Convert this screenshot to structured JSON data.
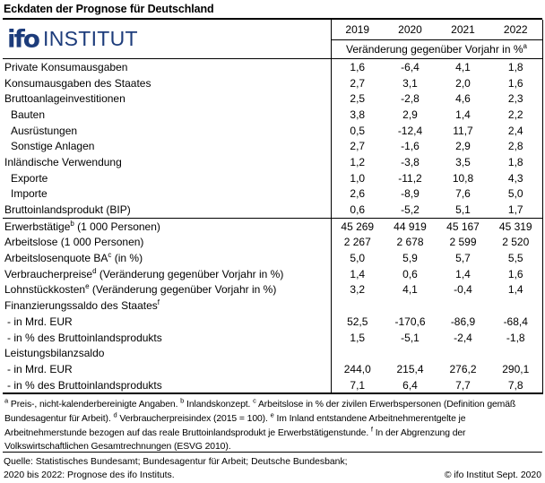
{
  "title": "Eckdaten der Prognose für Deutschland",
  "logo": {
    "mark": "ifo",
    "name": "INSTITUT"
  },
  "colors": {
    "brand_blue": "#1d3c7b",
    "text": "#000000",
    "line": "#000000"
  },
  "header": {
    "years": [
      "2019",
      "2020",
      "2021",
      "2022"
    ],
    "unit_label": "Veränderung gegenüber Vorjahr in %",
    "unit_sup": "a"
  },
  "rows": [
    {
      "pre": "Private Konsumausgaben",
      "sup": "",
      "post": "",
      "indent": 0,
      "section_start": false,
      "values": [
        "1,6",
        "-6,4",
        "4,1",
        "1,8"
      ]
    },
    {
      "pre": "Konsumausgaben des Staates",
      "sup": "",
      "post": "",
      "indent": 0,
      "section_start": false,
      "values": [
        "2,7",
        "3,1",
        "2,0",
        "1,6"
      ]
    },
    {
      "pre": "Bruttoanlageinvestitionen",
      "sup": "",
      "post": "",
      "indent": 0,
      "section_start": false,
      "values": [
        "2,5",
        "-2,8",
        "4,6",
        "2,3"
      ]
    },
    {
      "pre": "Bauten",
      "sup": "",
      "post": "",
      "indent": 1,
      "section_start": false,
      "values": [
        "3,8",
        "2,9",
        "1,4",
        "2,2"
      ]
    },
    {
      "pre": "Ausrüstungen",
      "sup": "",
      "post": "",
      "indent": 1,
      "section_start": false,
      "values": [
        "0,5",
        "-12,4",
        "11,7",
        "2,4"
      ]
    },
    {
      "pre": "Sonstige Anlagen",
      "sup": "",
      "post": "",
      "indent": 1,
      "section_start": false,
      "values": [
        "2,7",
        "-1,6",
        "2,9",
        "2,8"
      ]
    },
    {
      "pre": "Inländische Verwendung",
      "sup": "",
      "post": "",
      "indent": 0,
      "section_start": false,
      "values": [
        "1,2",
        "-3,8",
        "3,5",
        "1,8"
      ]
    },
    {
      "pre": "Exporte",
      "sup": "",
      "post": "",
      "indent": 1,
      "section_start": false,
      "values": [
        "1,0",
        "-11,2",
        "10,8",
        "4,3"
      ]
    },
    {
      "pre": "Importe",
      "sup": "",
      "post": "",
      "indent": 1,
      "section_start": false,
      "values": [
        "2,6",
        "-8,9",
        "7,6",
        "5,0"
      ]
    },
    {
      "pre": "Bruttoinlandsprodukt (BIP)",
      "sup": "",
      "post": "",
      "indent": 0,
      "section_start": false,
      "values": [
        "0,6",
        "-5,2",
        "5,1",
        "1,7"
      ]
    },
    {
      "pre": "Erwerbstätige",
      "sup": "b",
      "post": " (1 000 Personen)",
      "indent": 0,
      "section_start": true,
      "values": [
        "45 269",
        "44 919",
        "45 167",
        "45 319"
      ]
    },
    {
      "pre": "Arbeitslose (1 000 Personen)",
      "sup": "",
      "post": "",
      "indent": 0,
      "section_start": false,
      "values": [
        "2 267",
        "2 678",
        "2 599",
        "2 520"
      ]
    },
    {
      "pre": "Arbeitslosenquote BA",
      "sup": "c",
      "post": " (in %)",
      "indent": 0,
      "section_start": false,
      "values": [
        "5,0",
        "5,9",
        "5,7",
        "5,5"
      ]
    },
    {
      "pre": "Verbraucherpreise",
      "sup": "d",
      "post": " (Veränderung gegenüber Vorjahr in %)",
      "indent": 0,
      "section_start": false,
      "values": [
        "1,4",
        "0,6",
        "1,4",
        "1,6"
      ]
    },
    {
      "pre": "Lohnstückkosten",
      "sup": "e",
      "post": " (Veränderung gegenüber Vorjahr in %)",
      "indent": 0,
      "section_start": false,
      "values": [
        "3,2",
        "4,1",
        "-0,4",
        "1,4"
      ]
    },
    {
      "pre": "Finanzierungssaldo des Staates",
      "sup": "f",
      "post": "",
      "indent": 0,
      "section_start": false,
      "values": [
        "",
        "",
        "",
        ""
      ]
    },
    {
      "pre": "- in Mrd. EUR",
      "sup": "",
      "post": "",
      "indent": 2,
      "section_start": false,
      "values": [
        "52,5",
        "-170,6",
        "-86,9",
        "-68,4"
      ]
    },
    {
      "pre": "- in % des Bruttoinlandsprodukts",
      "sup": "",
      "post": "",
      "indent": 2,
      "section_start": false,
      "values": [
        "1,5",
        "-5,1",
        "-2,4",
        "-1,8"
      ]
    },
    {
      "pre": "Leistungsbilanzsaldo",
      "sup": "",
      "post": "",
      "indent": 0,
      "section_start": false,
      "values": [
        "",
        "",
        "",
        ""
      ]
    },
    {
      "pre": "- in Mrd. EUR",
      "sup": "",
      "post": "",
      "indent": 2,
      "section_start": false,
      "values": [
        "244,0",
        "215,4",
        "276,2",
        "290,1"
      ]
    },
    {
      "pre": "- in % des Bruttoinlandsprodukts",
      "sup": "",
      "post": "",
      "indent": 2,
      "section_start": false,
      "values": [
        "7,1",
        "6,4",
        "7,7",
        "7,8"
      ]
    }
  ],
  "footnotes": [
    {
      "sup": "a",
      "text": " Preis-, nicht-kalenderbereinigte Angaben. "
    },
    {
      "sup": "b",
      "text": " Inlandskonzept. "
    },
    {
      "sup": "c",
      "text": " Arbeitslose in % der zivilen Erwerbspersonen (Definition gemäß Bundesagentur für Arbeit). "
    },
    {
      "sup": "d",
      "text": " Verbraucherpreisindex (2015 = 100). "
    },
    {
      "sup": "e",
      "text": " Im Inland entstandene Arbeitnehmerentgelte je Arbeitnehmerstunde bezogen auf das reale Bruttoinlandsprodukt je Erwerbstätigenstunde. "
    },
    {
      "sup": "f",
      "text": " In der Abgrenzung der Volkswirtschaftlichen Gesamtrechnungen (ESVG 2010)."
    }
  ],
  "source": {
    "line1": "Quelle: Statistisches Bundesamt; Bundesagentur für Arbeit; Deutsche Bundesbank;",
    "line2": "2020 bis 2022: Prognose des ifo Instituts."
  },
  "copyright": "© ifo Institut Sept. 2020"
}
